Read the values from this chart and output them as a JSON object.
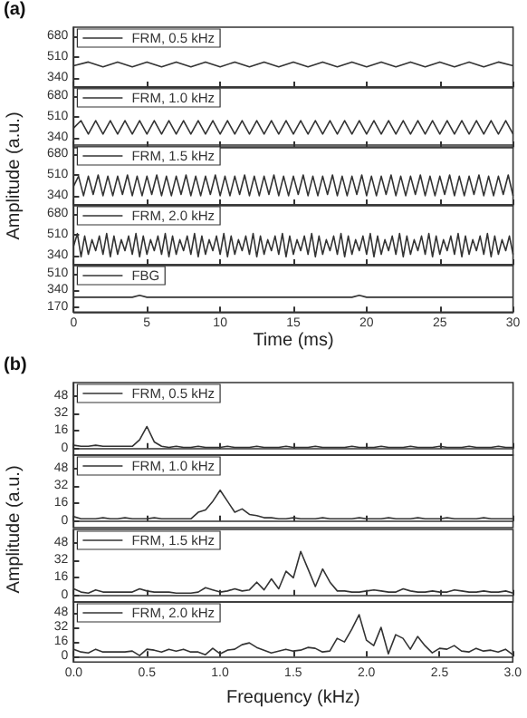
{
  "chart_data": [
    {
      "type": "line",
      "title": "(a)",
      "legend": "top left",
      "tick_labels": "y",
      "xlim": [
        0,
        30
      ],
      "ylim": [
        265,
        755
      ],
      "xticks": [
        0,
        5,
        10,
        15,
        20,
        25,
        30
      ],
      "yticks": [
        340,
        510,
        680
      ],
      "series": [
        {
          "name": "FRM, 0.5 kHz",
          "color": "#333333",
          "x": [
            0,
            1,
            2,
            3,
            4,
            5,
            6,
            7,
            8,
            9,
            10,
            11,
            12,
            13,
            14,
            15,
            16,
            17,
            18,
            19,
            20,
            21,
            22,
            23,
            24,
            25,
            26,
            27,
            28,
            29,
            30
          ],
          "values": [
            440,
            470,
            430,
            470,
            430,
            470,
            430,
            470,
            430,
            470,
            430,
            470,
            430,
            470,
            430,
            470,
            430,
            470,
            430,
            470,
            430,
            470,
            430,
            470,
            430,
            470,
            430,
            470,
            430,
            470,
            440
          ]
        }
      ]
    },
    {
      "type": "line",
      "legend": "top left",
      "tick_labels": "y",
      "xlim": [
        0,
        30
      ],
      "ylim": [
        265,
        755
      ],
      "xticks": [
        0,
        5,
        10,
        15,
        20,
        25,
        30
      ],
      "yticks": [
        340,
        510,
        680
      ],
      "series": [
        {
          "name": "FRM, 1.0 kHz",
          "color": "#333333",
          "x": [
            0,
            0.5,
            1,
            1.5,
            2,
            2.5,
            3,
            3.5,
            4,
            4.5,
            5,
            5.5,
            6,
            6.5,
            7,
            7.5,
            8,
            8.5,
            9,
            9.5,
            10,
            10.5,
            11,
            11.5,
            12,
            12.5,
            13,
            13.5,
            14,
            14.5,
            15,
            15.5,
            16,
            16.5,
            17,
            17.5,
            18,
            18.5,
            19,
            19.5,
            20,
            20.5,
            21,
            21.5,
            22,
            22.5,
            23,
            23.5,
            24,
            24.5,
            25,
            25.5,
            26,
            26.5,
            27,
            27.5,
            28,
            28.5,
            29,
            29.5,
            30
          ],
          "values": [
            420,
            480,
            370,
            480,
            370,
            480,
            370,
            480,
            370,
            480,
            370,
            480,
            370,
            480,
            370,
            480,
            370,
            480,
            370,
            480,
            370,
            480,
            370,
            480,
            370,
            480,
            370,
            480,
            370,
            480,
            370,
            480,
            370,
            480,
            370,
            480,
            370,
            480,
            370,
            480,
            370,
            480,
            370,
            480,
            370,
            480,
            370,
            480,
            370,
            480,
            370,
            480,
            370,
            480,
            370,
            480,
            370,
            480,
            370,
            480,
            370
          ]
        }
      ]
    },
    {
      "type": "line",
      "legend": "top left",
      "tick_labels": "y",
      "ylabel": "Amplitude (a.u.)",
      "xlim": [
        0,
        30
      ],
      "ylim": [
        265,
        755
      ],
      "xticks": [
        0,
        5,
        10,
        15,
        20,
        25,
        30
      ],
      "yticks": [
        340,
        510,
        680
      ],
      "series": [
        {
          "name": "FRM, 1.5 kHz",
          "color": "#333333",
          "x": [
            0,
            0.33,
            0.67,
            1,
            1.33,
            1.67,
            2,
            2.33,
            2.67,
            3,
            3.33,
            3.67,
            4,
            4.33,
            4.67,
            5,
            5.33,
            5.67,
            6,
            6.33,
            6.67,
            7,
            7.33,
            7.67,
            8,
            8.33,
            8.67,
            9,
            9.33,
            9.67,
            10,
            10.33,
            10.67,
            11,
            11.33,
            11.67,
            12,
            12.33,
            12.67,
            13,
            13.33,
            13.67,
            14,
            14.33,
            14.67,
            15,
            15.33,
            15.67,
            16,
            16.33,
            16.67,
            17,
            17.33,
            17.67,
            18,
            18.33,
            18.67,
            19,
            19.33,
            19.67,
            20,
            20.33,
            20.67,
            21,
            21.33,
            21.67,
            22,
            22.33,
            22.67,
            23,
            23.33,
            23.67,
            24,
            24.33,
            24.67,
            25,
            25.33,
            25.67,
            26,
            26.33,
            26.67,
            27,
            27.33,
            27.67,
            28,
            28.33,
            28.67,
            29,
            29.33,
            29.67,
            30
          ],
          "values": [
            420,
            500,
            340,
            500,
            350,
            510,
            340,
            500,
            340,
            500,
            350,
            510,
            340,
            500,
            340,
            500,
            350,
            510,
            340,
            500,
            340,
            500,
            350,
            510,
            340,
            500,
            340,
            500,
            350,
            510,
            340,
            500,
            340,
            500,
            350,
            510,
            340,
            500,
            340,
            500,
            350,
            510,
            340,
            500,
            340,
            500,
            350,
            510,
            340,
            500,
            340,
            500,
            350,
            510,
            340,
            500,
            340,
            500,
            350,
            510,
            340,
            500,
            340,
            500,
            350,
            510,
            340,
            500,
            340,
            500,
            350,
            510,
            340,
            500,
            340,
            500,
            350,
            510,
            340,
            500,
            340,
            500,
            350,
            510,
            340,
            500,
            340,
            500,
            350,
            510,
            340
          ]
        }
      ]
    },
    {
      "type": "line",
      "legend": "top left",
      "tick_labels": "y",
      "xlim": [
        0,
        30
      ],
      "ylim": [
        265,
        755
      ],
      "xticks": [
        0,
        5,
        10,
        15,
        20,
        25,
        30
      ],
      "yticks": [
        340,
        510,
        680
      ],
      "series": [
        {
          "name": "FRM, 2.0 kHz",
          "color": "#333333",
          "x": [
            0,
            0.25,
            0.5,
            0.75,
            1,
            1.25,
            1.5,
            1.75,
            2,
            2.25,
            2.5,
            2.75,
            3,
            3.25,
            3.5,
            3.75,
            4,
            4.25,
            4.5,
            4.75,
            5,
            5.25,
            5.5,
            5.75,
            6,
            6.25,
            6.5,
            6.75,
            7,
            7.25,
            7.5,
            7.75,
            8,
            8.25,
            8.5,
            8.75,
            9,
            9.25,
            9.5,
            9.75,
            10,
            10.25,
            10.5,
            10.75,
            11,
            11.25,
            11.5,
            11.75,
            12,
            12.25,
            12.5,
            12.75,
            13,
            13.25,
            13.5,
            13.75,
            14,
            14.25,
            14.5,
            14.75,
            15,
            15.25,
            15.5,
            15.75,
            16,
            16.25,
            16.5,
            16.75,
            17,
            17.25,
            17.5,
            17.75,
            18,
            18.25,
            18.5,
            18.75,
            19,
            19.25,
            19.5,
            19.75,
            20,
            20.25,
            20.5,
            20.75,
            21,
            21.25,
            21.5,
            21.75,
            22,
            22.25,
            22.5,
            22.75,
            23,
            23.25,
            23.5,
            23.75,
            24,
            24.25,
            24.5,
            24.75,
            25,
            25.25,
            25.5,
            25.75,
            26,
            26.25,
            26.5,
            26.75,
            27,
            27.25,
            27.5,
            27.75,
            28,
            28.25,
            28.5,
            28.75,
            29,
            29.25,
            29.5,
            29.75,
            30
          ],
          "values": [
            420,
            520,
            330,
            500,
            350,
            470,
            380,
            500,
            350,
            520,
            330,
            500,
            350,
            470,
            380,
            500,
            350,
            520,
            330,
            500,
            350,
            470,
            380,
            500,
            350,
            520,
            330,
            500,
            350,
            470,
            380,
            500,
            350,
            520,
            330,
            500,
            350,
            470,
            380,
            500,
            350,
            520,
            330,
            500,
            350,
            470,
            380,
            500,
            350,
            520,
            330,
            500,
            350,
            470,
            380,
            500,
            350,
            520,
            330,
            500,
            350,
            470,
            380,
            500,
            350,
            520,
            330,
            500,
            350,
            470,
            380,
            500,
            350,
            520,
            330,
            500,
            350,
            470,
            380,
            500,
            350,
            520,
            330,
            500,
            350,
            470,
            380,
            500,
            350,
            520,
            330,
            500,
            350,
            470,
            380,
            500,
            350,
            520,
            330,
            500,
            350,
            470,
            380,
            500,
            350,
            520,
            330,
            500,
            350,
            470,
            380,
            500,
            350,
            520,
            330,
            500,
            350,
            470,
            380,
            500,
            350
          ]
        }
      ]
    },
    {
      "type": "line",
      "legend": "top left",
      "xlabel": "Time (ms)",
      "xlim": [
        0,
        30
      ],
      "ylim": [
        120,
        600
      ],
      "xticks": [
        0,
        5,
        10,
        15,
        20,
        25,
        30
      ],
      "yticks": [
        170,
        340,
        510
      ],
      "series": [
        {
          "name": "FBG",
          "color": "#333333",
          "x": [
            0,
            2,
            4,
            4.5,
            5,
            7,
            10,
            13,
            16,
            19,
            19.5,
            20,
            22,
            25,
            28,
            30
          ],
          "values": [
            270,
            270,
            270,
            290,
            270,
            270,
            270,
            270,
            270,
            270,
            290,
            270,
            270,
            270,
            270,
            270
          ]
        }
      ]
    },
    {
      "type": "line",
      "title": "(b)",
      "legend": "top left",
      "tick_labels": "y",
      "xlim": [
        0,
        3
      ],
      "ylim": [
        -6,
        60
      ],
      "xticks": [
        0,
        0.5,
        1,
        1.5,
        2,
        2.5,
        3
      ],
      "yticks": [
        0,
        16,
        32,
        48
      ],
      "series": [
        {
          "name": "FRM, 0.5 kHz",
          "color": "#333333",
          "x": [
            0,
            0.05,
            0.1,
            0.15,
            0.2,
            0.25,
            0.3,
            0.35,
            0.4,
            0.45,
            0.5,
            0.55,
            0.6,
            0.65,
            0.7,
            0.75,
            0.8,
            0.85,
            0.9,
            0.95,
            1,
            1.05,
            1.1,
            1.15,
            1.2,
            1.25,
            1.3,
            1.35,
            1.4,
            1.45,
            1.5,
            1.55,
            1.6,
            1.65,
            1.7,
            1.75,
            1.8,
            1.85,
            1.9,
            1.95,
            2,
            2.05,
            2.1,
            2.15,
            2.2,
            2.25,
            2.3,
            2.35,
            2.4,
            2.45,
            2.5,
            2.55,
            2.6,
            2.65,
            2.7,
            2.75,
            2.8,
            2.85,
            2.9,
            2.95,
            3
          ],
          "values": [
            3,
            2,
            2,
            3,
            2,
            2,
            2,
            2,
            2,
            8,
            20,
            6,
            2,
            1,
            2,
            1,
            1,
            2,
            1,
            1,
            1,
            2,
            1,
            1,
            1,
            2,
            1,
            1,
            1,
            2,
            1,
            1,
            1,
            2,
            1,
            1,
            1,
            1,
            2,
            1,
            1,
            1,
            2,
            1,
            1,
            1,
            2,
            1,
            1,
            1,
            2,
            1,
            1,
            1,
            2,
            1,
            1,
            1,
            2,
            1,
            1
          ]
        }
      ]
    },
    {
      "type": "line",
      "legend": "top left",
      "tick_labels": "y",
      "ylabel": "Amplitude (a.u.)",
      "xlim": [
        0,
        3
      ],
      "ylim": [
        -6,
        60
      ],
      "xticks": [
        0,
        0.5,
        1,
        1.5,
        2,
        2.5,
        3
      ],
      "yticks": [
        0,
        16,
        32,
        48
      ],
      "series": [
        {
          "name": "FRM, 1.0 kHz",
          "color": "#333333",
          "x": [
            0,
            0.05,
            0.1,
            0.15,
            0.2,
            0.25,
            0.3,
            0.35,
            0.4,
            0.45,
            0.5,
            0.55,
            0.6,
            0.65,
            0.7,
            0.75,
            0.8,
            0.85,
            0.9,
            0.95,
            1,
            1.05,
            1.1,
            1.15,
            1.2,
            1.25,
            1.3,
            1.35,
            1.4,
            1.45,
            1.5,
            1.55,
            1.6,
            1.65,
            1.7,
            1.75,
            1.8,
            1.85,
            1.9,
            1.95,
            2,
            2.05,
            2.1,
            2.15,
            2.2,
            2.25,
            2.3,
            2.35,
            2.4,
            2.45,
            2.5,
            2.55,
            2.6,
            2.65,
            2.7,
            2.75,
            2.8,
            2.85,
            2.9,
            2.95,
            3
          ],
          "values": [
            4,
            2,
            2,
            2,
            3,
            2,
            2,
            3,
            2,
            2,
            2,
            3,
            2,
            2,
            2,
            2,
            2,
            8,
            10,
            18,
            28,
            18,
            8,
            11,
            6,
            5,
            3,
            3,
            2,
            2,
            3,
            2,
            2,
            2,
            3,
            2,
            2,
            2,
            2,
            3,
            2,
            2,
            2,
            3,
            2,
            2,
            2,
            3,
            2,
            2,
            2,
            3,
            2,
            2,
            2,
            2,
            3,
            2,
            2,
            2,
            2
          ]
        }
      ]
    },
    {
      "type": "line",
      "legend": "top left",
      "tick_labels": "y",
      "xlim": [
        0,
        3
      ],
      "ylim": [
        -6,
        60
      ],
      "xticks": [
        0,
        0.5,
        1,
        1.5,
        2,
        2.5,
        3
      ],
      "yticks": [
        0,
        16,
        32,
        48
      ],
      "series": [
        {
          "name": "FRM, 1.5 kHz",
          "color": "#333333",
          "x": [
            0,
            0.05,
            0.1,
            0.15,
            0.2,
            0.25,
            0.3,
            0.35,
            0.4,
            0.45,
            0.5,
            0.55,
            0.6,
            0.65,
            0.7,
            0.75,
            0.8,
            0.85,
            0.9,
            0.95,
            1,
            1.05,
            1.1,
            1.15,
            1.2,
            1.25,
            1.3,
            1.35,
            1.4,
            1.45,
            1.5,
            1.55,
            1.6,
            1.65,
            1.7,
            1.75,
            1.8,
            1.85,
            1.9,
            1.95,
            2,
            2.05,
            2.1,
            2.15,
            2.2,
            2.25,
            2.3,
            2.35,
            2.4,
            2.45,
            2.5,
            2.55,
            2.6,
            2.65,
            2.7,
            2.75,
            2.8,
            2.85,
            2.9,
            2.95,
            3
          ],
          "values": [
            6,
            3,
            2,
            5,
            3,
            3,
            3,
            3,
            3,
            6,
            4,
            3,
            3,
            3,
            2,
            2,
            2,
            3,
            7,
            5,
            3,
            4,
            6,
            4,
            5,
            12,
            5,
            15,
            6,
            22,
            16,
            40,
            24,
            8,
            24,
            12,
            4,
            4,
            3,
            3,
            4,
            5,
            4,
            3,
            3,
            6,
            4,
            3,
            3,
            4,
            3,
            3,
            5,
            4,
            3,
            3,
            4,
            3,
            3,
            4,
            2
          ]
        }
      ]
    },
    {
      "type": "line",
      "legend": "top left",
      "xlabel": "Frequency (kHz)",
      "xlim": [
        0,
        3
      ],
      "ylim": [
        -6,
        60
      ],
      "xticks": [
        {
          "value": 0,
          "label": "0.0"
        },
        {
          "value": 0.5,
          "label": "0.5"
        },
        {
          "value": 1,
          "label": "1.0"
        },
        {
          "value": 1.5,
          "label": "1.5"
        },
        {
          "value": 2,
          "label": "2.0"
        },
        {
          "value": 2.5,
          "label": "2.5"
        },
        {
          "value": 3,
          "label": "3.0"
        }
      ],
      "yticks": [
        0,
        16,
        32,
        48
      ],
      "series": [
        {
          "name": "FRM, 2.0 kHz",
          "color": "#333333",
          "x": [
            0,
            0.05,
            0.1,
            0.15,
            0.2,
            0.25,
            0.3,
            0.35,
            0.4,
            0.45,
            0.5,
            0.55,
            0.6,
            0.65,
            0.7,
            0.75,
            0.8,
            0.85,
            0.9,
            0.95,
            1,
            1.05,
            1.1,
            1.15,
            1.2,
            1.25,
            1.3,
            1.35,
            1.4,
            1.45,
            1.5,
            1.55,
            1.6,
            1.65,
            1.7,
            1.75,
            1.8,
            1.85,
            1.9,
            1.95,
            2,
            2.05,
            2.1,
            2.15,
            2.2,
            2.25,
            2.3,
            2.35,
            2.4,
            2.45,
            2.5,
            2.55,
            2.6,
            2.65,
            2.7,
            2.75,
            2.8,
            2.85,
            2.9,
            2.95,
            3
          ],
          "values": [
            8,
            5,
            4,
            8,
            5,
            5,
            5,
            5,
            6,
            1,
            8,
            7,
            5,
            8,
            6,
            8,
            5,
            5,
            2,
            9,
            3,
            7,
            8,
            13,
            15,
            10,
            7,
            4,
            6,
            8,
            6,
            7,
            10,
            9,
            5,
            6,
            20,
            16,
            30,
            46,
            18,
            12,
            32,
            3,
            24,
            20,
            8,
            22,
            12,
            4,
            9,
            8,
            12,
            6,
            5,
            9,
            6,
            7,
            5,
            8,
            2
          ]
        }
      ]
    }
  ]
}
